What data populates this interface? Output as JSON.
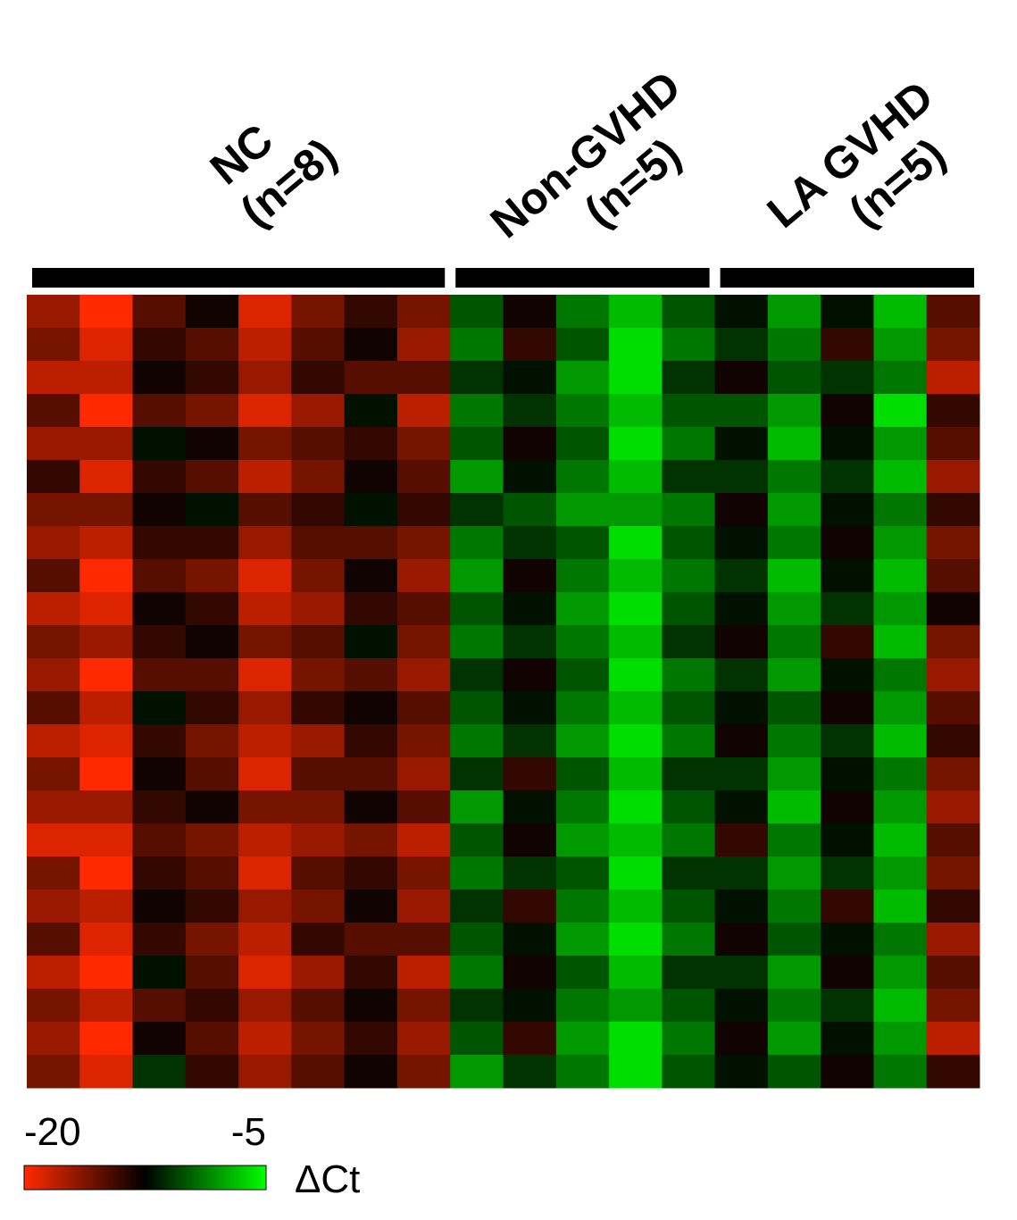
{
  "chart_data": {
    "type": "heatmap",
    "colormap": [
      "#ff2a00",
      "#000000",
      "#00ff00"
    ],
    "groups": [
      {
        "name": [
          "NC",
          "(n=8)"
        ],
        "values": [
          [
            -17,
            -20,
            -15,
            -13,
            -19,
            -16,
            -14,
            -16
          ],
          [
            -16,
            -19,
            -14,
            -15,
            -18,
            -15,
            -13,
            -17
          ],
          [
            -18,
            -18,
            -13,
            -14,
            -17,
            -14,
            -15,
            -15
          ],
          [
            -15,
            -20,
            -15,
            -16,
            -19,
            -17,
            -12,
            -18
          ],
          [
            -17,
            -17,
            -12,
            -13,
            -16,
            -15,
            -14,
            -16
          ],
          [
            -14,
            -19,
            -14,
            -15,
            -18,
            -16,
            -13,
            -15
          ],
          [
            -16,
            -16,
            -13,
            -12,
            -15,
            -14,
            -12,
            -14
          ],
          [
            -17,
            -18,
            -14,
            -14,
            -17,
            -15,
            -15,
            -16
          ],
          [
            -15,
            -20,
            -15,
            -16,
            -19,
            -16,
            -13,
            -17
          ],
          [
            -18,
            -19,
            -13,
            -14,
            -18,
            -17,
            -14,
            -15
          ],
          [
            -16,
            -17,
            -14,
            -13,
            -16,
            -15,
            -12,
            -16
          ],
          [
            -17,
            -20,
            -15,
            -15,
            -19,
            -16,
            -15,
            -17
          ],
          [
            -15,
            -18,
            -12,
            -14,
            -17,
            -14,
            -13,
            -15
          ],
          [
            -18,
            -19,
            -14,
            -16,
            -18,
            -17,
            -14,
            -16
          ],
          [
            -16,
            -20,
            -13,
            -15,
            -19,
            -15,
            -15,
            -17
          ],
          [
            -17,
            -17,
            -14,
            -13,
            -16,
            -16,
            -13,
            -15
          ],
          [
            -19,
            -19,
            -15,
            -16,
            -18,
            -17,
            -16,
            -18
          ],
          [
            -16,
            -20,
            -14,
            -15,
            -19,
            -15,
            -14,
            -16
          ],
          [
            -17,
            -18,
            -13,
            -14,
            -17,
            -16,
            -13,
            -17
          ],
          [
            -15,
            -19,
            -14,
            -16,
            -18,
            -14,
            -15,
            -15
          ],
          [
            -18,
            -20,
            -12,
            -15,
            -19,
            -17,
            -14,
            -18
          ],
          [
            -16,
            -18,
            -15,
            -14,
            -17,
            -15,
            -13,
            -16
          ],
          [
            -17,
            -20,
            -13,
            -15,
            -18,
            -16,
            -14,
            -17
          ],
          [
            -16,
            -19,
            -11,
            -14,
            -17,
            -15,
            -13,
            -16
          ]
        ]
      },
      {
        "name": [
          "Non-GVHD",
          "(n=5)"
        ],
        "values": [
          [
            -10,
            -13,
            -9,
            -7,
            -10
          ],
          [
            -9,
            -14,
            -10,
            -6,
            -9
          ],
          [
            -11,
            -12,
            -8,
            -6,
            -11
          ],
          [
            -9,
            -11,
            -9,
            -7,
            -10
          ],
          [
            -10,
            -13,
            -10,
            -6,
            -9
          ],
          [
            -8,
            -12,
            -9,
            -7,
            -11
          ],
          [
            -11,
            -10,
            -8,
            -8,
            -9
          ],
          [
            -9,
            -11,
            -10,
            -6,
            -10
          ],
          [
            -8,
            -13,
            -9,
            -7,
            -9
          ],
          [
            -10,
            -12,
            -8,
            -6,
            -10
          ],
          [
            -9,
            -11,
            -9,
            -7,
            -11
          ],
          [
            -11,
            -13,
            -10,
            -6,
            -9
          ],
          [
            -10,
            -12,
            -9,
            -7,
            -10
          ],
          [
            -9,
            -11,
            -8,
            -6,
            -9
          ],
          [
            -11,
            -14,
            -10,
            -7,
            -11
          ],
          [
            -8,
            -12,
            -9,
            -6,
            -10
          ],
          [
            -10,
            -13,
            -8,
            -7,
            -9
          ],
          [
            -9,
            -11,
            -10,
            -6,
            -11
          ],
          [
            -11,
            -14,
            -9,
            -7,
            -10
          ],
          [
            -10,
            -12,
            -8,
            -6,
            -9
          ],
          [
            -9,
            -13,
            -10,
            -7,
            -11
          ],
          [
            -11,
            -12,
            -9,
            -8,
            -10
          ],
          [
            -10,
            -14,
            -8,
            -6,
            -9
          ],
          [
            -8,
            -11,
            -9,
            -6,
            -10
          ]
        ]
      },
      {
        "name": [
          "LA GVHD",
          "(n=5)"
        ],
        "values": [
          [
            -12,
            -8,
            -12,
            -7,
            -15
          ],
          [
            -11,
            -9,
            -14,
            -8,
            -16
          ],
          [
            -13,
            -10,
            -11,
            -9,
            -18
          ],
          [
            -10,
            -8,
            -13,
            -6,
            -14
          ],
          [
            -12,
            -7,
            -12,
            -8,
            -15
          ],
          [
            -11,
            -9,
            -11,
            -7,
            -17
          ],
          [
            -13,
            -8,
            -12,
            -9,
            -14
          ],
          [
            -12,
            -9,
            -13,
            -8,
            -16
          ],
          [
            -11,
            -7,
            -12,
            -7,
            -15
          ],
          [
            -12,
            -8,
            -11,
            -8,
            -13
          ],
          [
            -13,
            -9,
            -14,
            -7,
            -16
          ],
          [
            -11,
            -8,
            -12,
            -9,
            -17
          ],
          [
            -12,
            -10,
            -13,
            -8,
            -15
          ],
          [
            -13,
            -9,
            -11,
            -7,
            -14
          ],
          [
            -11,
            -8,
            -12,
            -9,
            -16
          ],
          [
            -12,
            -7,
            -13,
            -8,
            -17
          ],
          [
            -14,
            -9,
            -12,
            -7,
            -15
          ],
          [
            -11,
            -8,
            -11,
            -8,
            -16
          ],
          [
            -12,
            -9,
            -14,
            -7,
            -14
          ],
          [
            -13,
            -10,
            -12,
            -9,
            -17
          ],
          [
            -11,
            -8,
            -13,
            -8,
            -15
          ],
          [
            -12,
            -9,
            -11,
            -7,
            -16
          ],
          [
            -13,
            -8,
            -12,
            -8,
            -18
          ],
          [
            -12,
            -10,
            -13,
            -9,
            -14
          ]
        ]
      }
    ],
    "colorbar": {
      "label": "ΔCt",
      "clim": [
        -20,
        -5
      ],
      "ticks": [
        -20,
        -5
      ]
    }
  }
}
